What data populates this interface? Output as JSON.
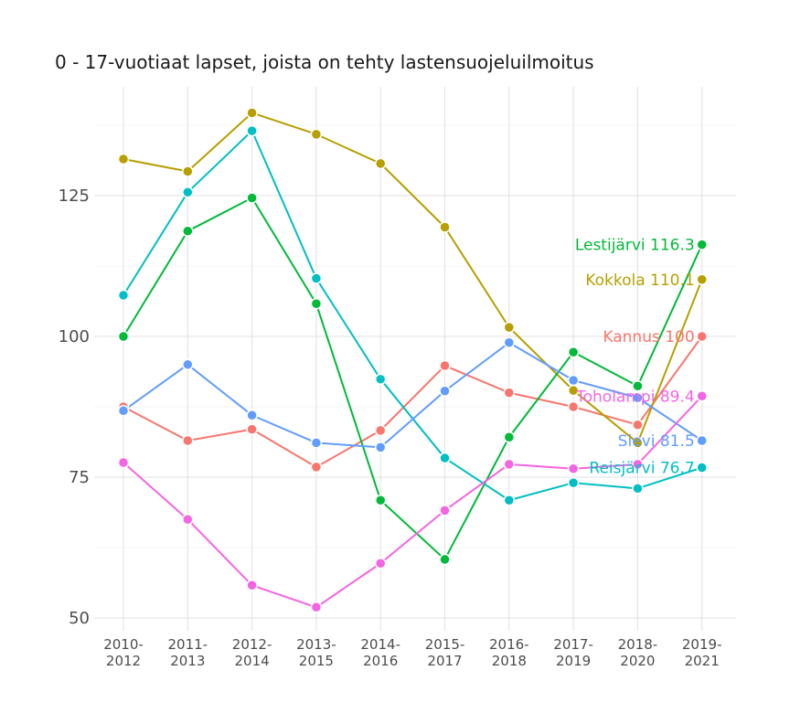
{
  "chart_data": {
    "type": "line",
    "title": "0 - 17-vuotiaat lapset, joista on tehty lastensuojeluilmoitus",
    "xlabel": "",
    "ylabel": "",
    "categories": [
      [
        "2010-",
        "2012"
      ],
      [
        "2011-",
        "2013"
      ],
      [
        "2012-",
        "2014"
      ],
      [
        "2013-",
        "2015"
      ],
      [
        "2014-",
        "2016"
      ],
      [
        "2015-",
        "2017"
      ],
      [
        "2016-",
        "2018"
      ],
      [
        "2017-",
        "2019"
      ],
      [
        "2018-",
        "2020"
      ],
      [
        "2019-",
        "2021"
      ]
    ],
    "yticks": [
      50,
      75,
      100,
      125
    ],
    "ylim": [
      48,
      143
    ],
    "grid": true,
    "series": [
      {
        "name": "Kannus",
        "end_label": "Kannus 100",
        "color": "#F8766D",
        "values": [
          87.5,
          81.5,
          83.5,
          76.8,
          83.3,
          94.8,
          90.0,
          87.5,
          84.3,
          100.0
        ]
      },
      {
        "name": "Kokkola",
        "end_label": "Kokkola 110.1",
        "color": "#B79F00",
        "values": [
          131.5,
          129.3,
          139.7,
          135.9,
          130.7,
          119.4,
          101.6,
          90.4,
          81.1,
          110.1
        ]
      },
      {
        "name": "Lestijärvi",
        "end_label": "Lestijärvi 116.3",
        "color": "#00BA38",
        "values": [
          100.0,
          118.7,
          124.6,
          105.8,
          70.9,
          60.4,
          82.1,
          97.2,
          91.2,
          116.3
        ]
      },
      {
        "name": "Reisjärvi",
        "end_label": "Reisjärvi 76.7",
        "color": "#00BFC4",
        "values": [
          107.3,
          125.6,
          136.5,
          110.3,
          92.4,
          78.4,
          70.9,
          74.0,
          73.0,
          76.7
        ]
      },
      {
        "name": "Sievi",
        "end_label": "Sievi 81.5",
        "color": "#619CFF",
        "values": [
          86.8,
          95.0,
          86.0,
          81.1,
          80.3,
          90.3,
          98.9,
          92.2,
          89.1,
          81.5
        ]
      },
      {
        "name": "Toholampi",
        "end_label": "Toholampi 89.4",
        "color": "#F564E3",
        "values": [
          77.6,
          67.5,
          55.8,
          51.9,
          59.7,
          69.1,
          77.3,
          76.5,
          77.3,
          89.4
        ]
      }
    ]
  }
}
